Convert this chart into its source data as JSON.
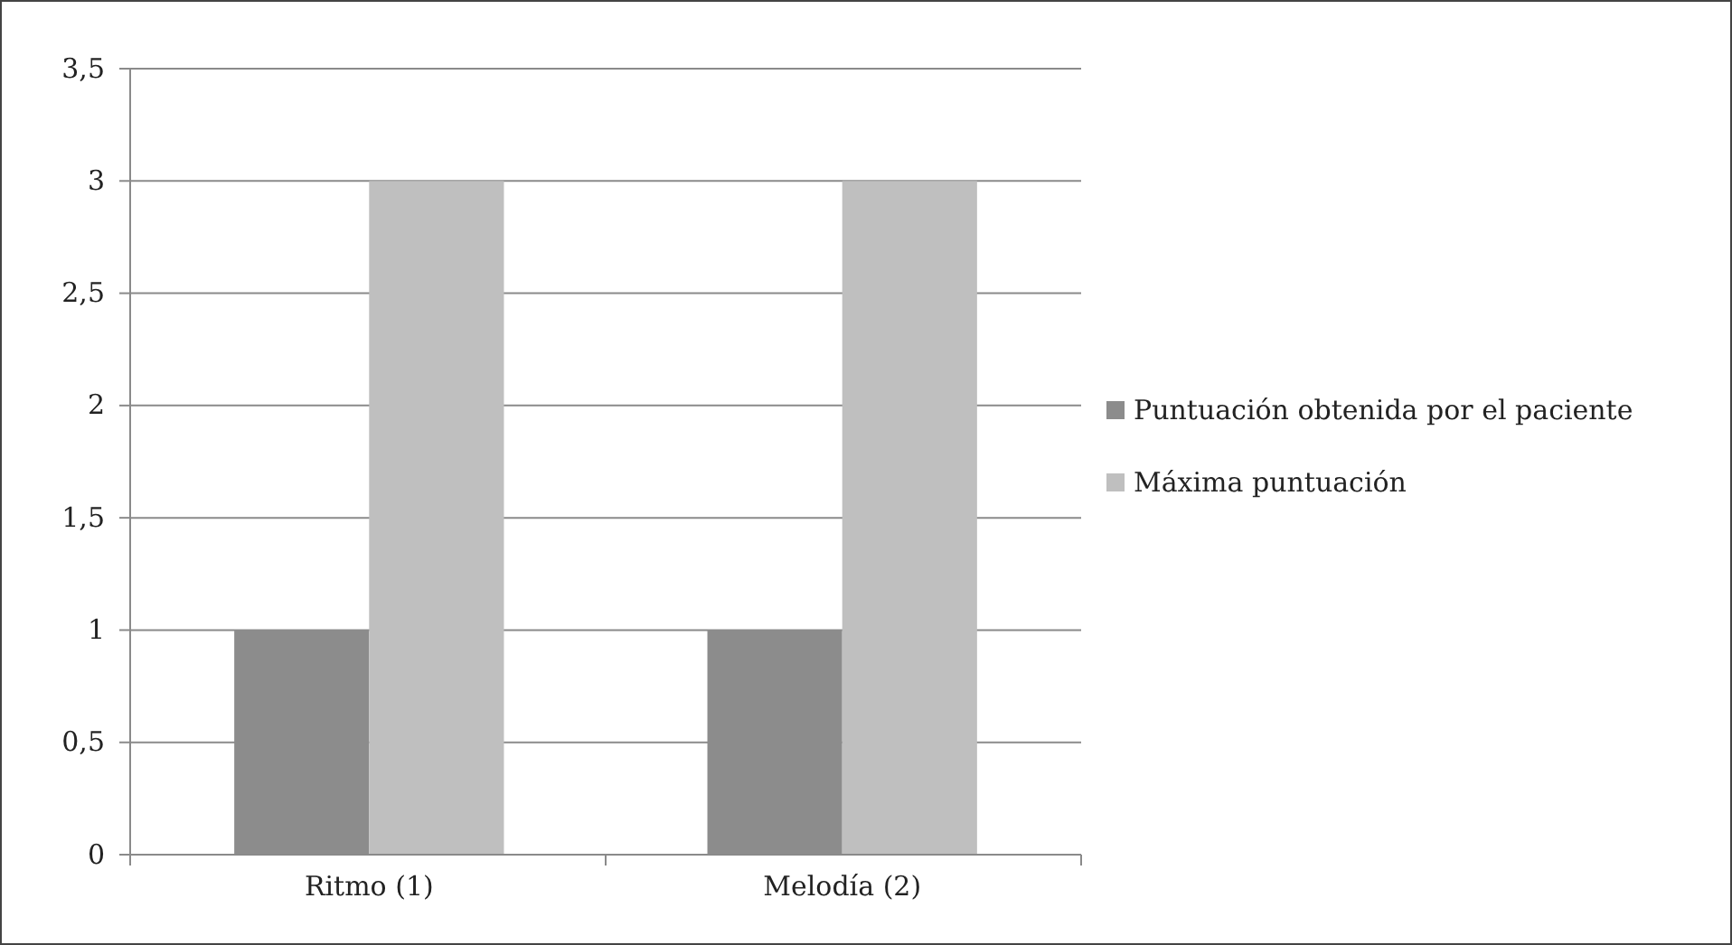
{
  "chart_data": {
    "type": "bar",
    "categories": [
      "Ritmo (1)",
      "Melodía (2)"
    ],
    "series": [
      {
        "name": "Puntuación obtenida por el paciente",
        "color": "#8c8c8c",
        "values": [
          1,
          1
        ]
      },
      {
        "name": "Máxima puntuación",
        "color": "#bfbfbf",
        "values": [
          3,
          3
        ]
      }
    ],
    "ylim": [
      0,
      3.5
    ],
    "yticks": [
      0,
      {
        "value": 0.5,
        "label": "0,5"
      },
      1,
      {
        "value": 1.5,
        "label": "1,5"
      },
      2,
      {
        "value": 2.5,
        "label": "2,5"
      },
      3,
      {
        "value": 3.5,
        "label": "3,5"
      }
    ],
    "grid": "y",
    "legend": "right"
  }
}
